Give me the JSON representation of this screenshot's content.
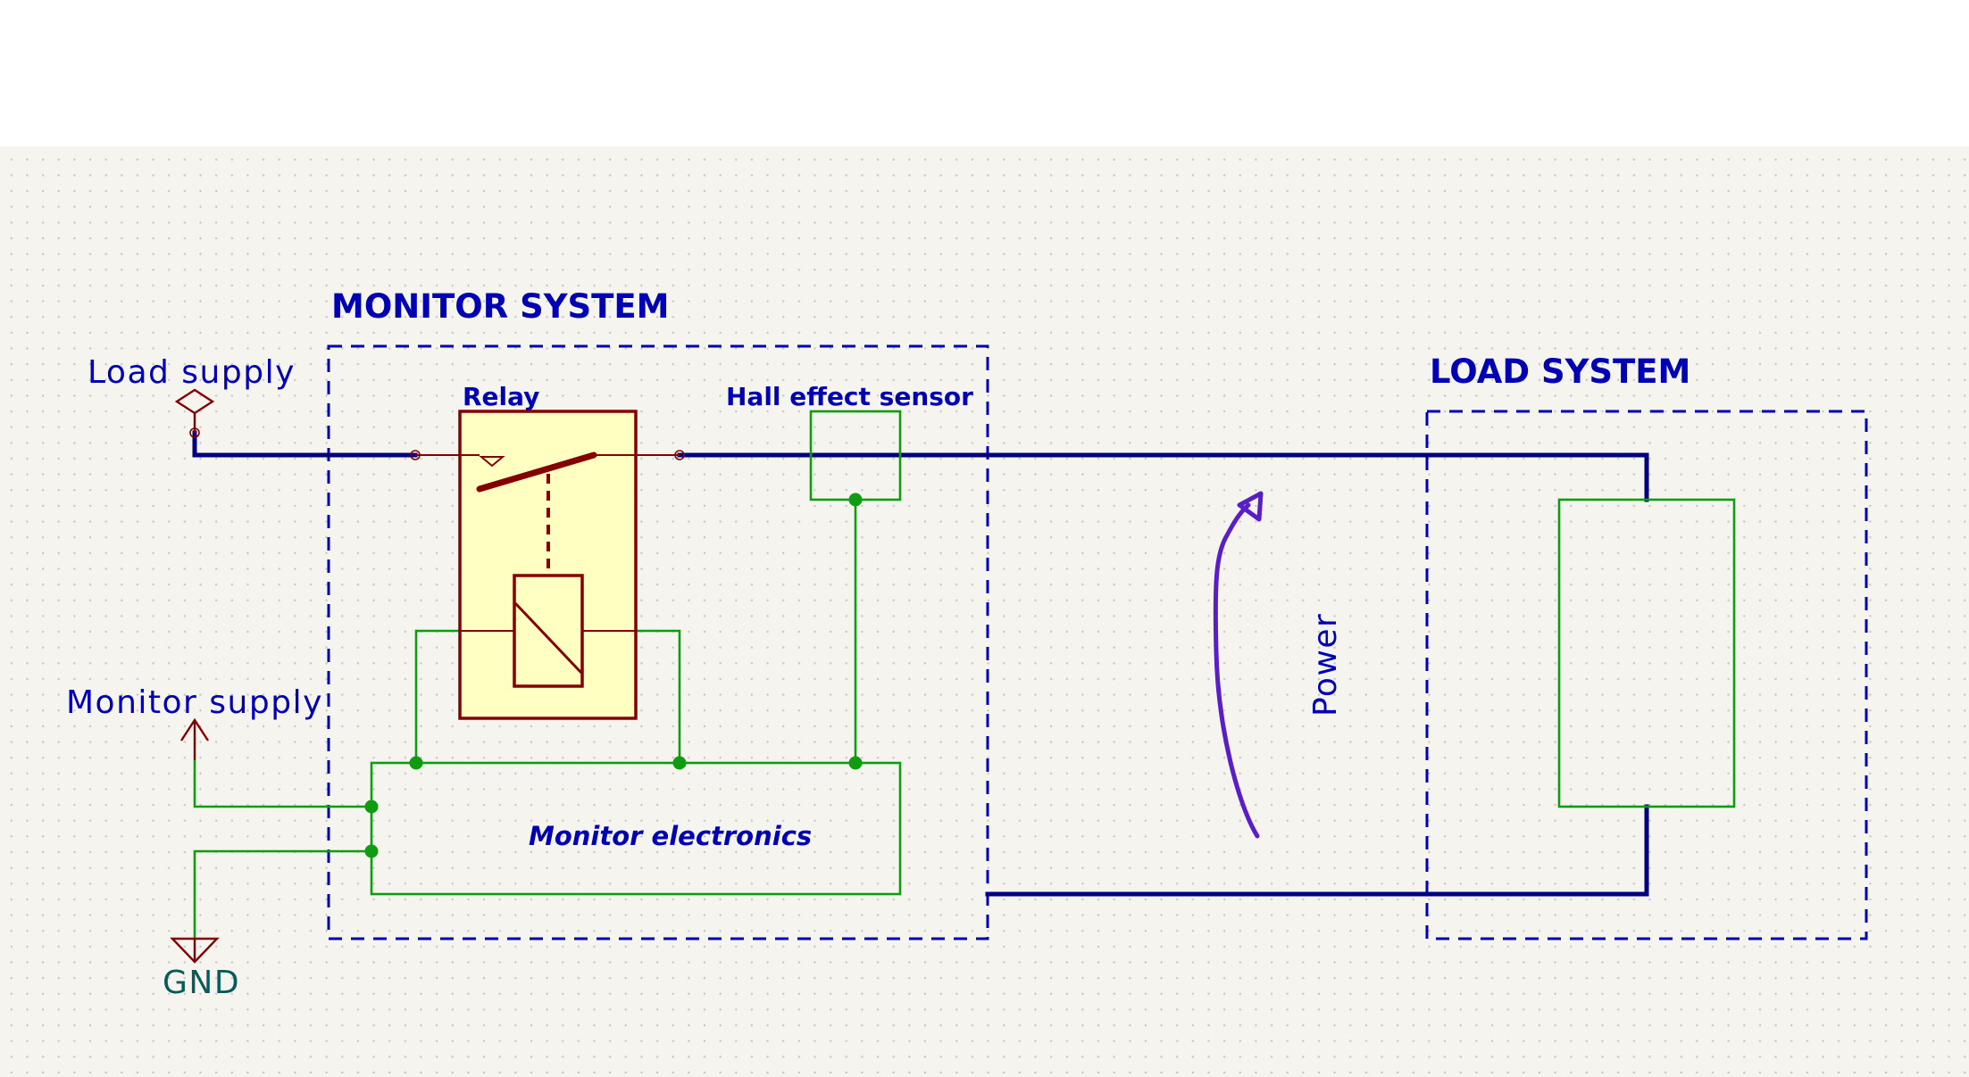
{
  "blocks": {
    "monitor_system": "MONITOR SYSTEM",
    "load_system": "LOAD SYSTEM"
  },
  "components": {
    "relay": "Relay",
    "hall_sensor": "Hall effect sensor",
    "monitor_electronics": "Monitor electronics"
  },
  "nets": {
    "load_supply": "Load supply",
    "monitor_supply": "Monitor supply",
    "gnd": "GND"
  },
  "annotations": {
    "power": "Power"
  },
  "colors": {
    "canvas_background": "#f5f4ef",
    "power_wire": "#00007f",
    "signal_wire": "#109c10",
    "junction": "#109c10",
    "symbol_outline": "#840000",
    "relay_fill": "#ffffc2",
    "block_outline": "#0000b4",
    "text_blue": "#0000b4",
    "gnd_text": "#0a5a5a",
    "power_arrow": "#5a1ec8"
  }
}
